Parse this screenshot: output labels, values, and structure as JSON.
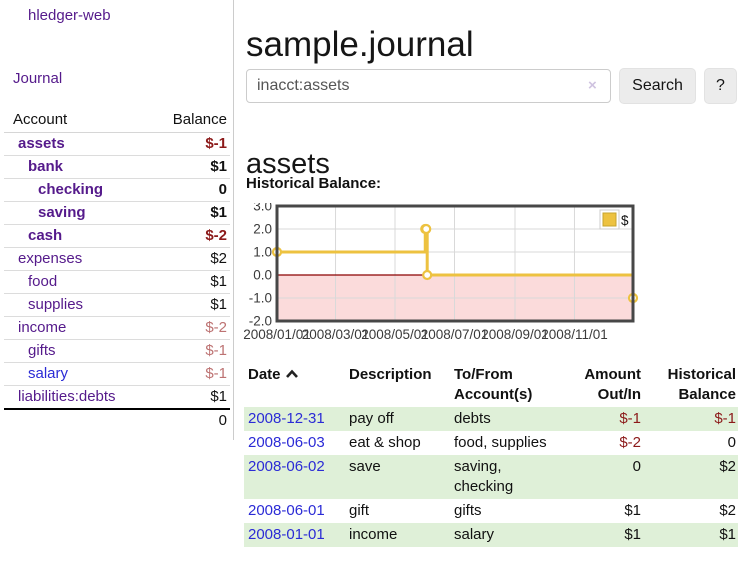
{
  "app": {
    "brand": "hledger-web",
    "nav_journal": "Journal"
  },
  "sidebar": {
    "header": {
      "account": "Account",
      "balance": "Balance"
    },
    "accounts": [
      {
        "name": "assets",
        "balance": "$-1",
        "level": 0,
        "bold": true
      },
      {
        "name": "bank",
        "balance": "$1",
        "level": 1,
        "bold": true
      },
      {
        "name": "checking",
        "balance": "0",
        "level": 2,
        "bold": true
      },
      {
        "name": "saving",
        "balance": "$1",
        "level": 2,
        "bold": true
      },
      {
        "name": "cash",
        "balance": "$-2",
        "level": 1,
        "bold": true
      },
      {
        "name": "expenses",
        "balance": "$2",
        "level": 0,
        "bold": false
      },
      {
        "name": "food",
        "balance": "$1",
        "level": 1,
        "bold": false
      },
      {
        "name": "supplies",
        "balance": "$1",
        "level": 1,
        "bold": false
      },
      {
        "name": "income",
        "balance": "$-2",
        "level": 0,
        "bold": false
      },
      {
        "name": "gifts",
        "balance": "$-1",
        "level": 1,
        "bold": false
      },
      {
        "name": "salary",
        "balance": "$-1",
        "level": 1,
        "bold": false,
        "variant": "blue"
      },
      {
        "name": "liabilities:debts",
        "balance": "$1",
        "level": 0,
        "bold": false
      }
    ],
    "total": "0"
  },
  "main": {
    "title": "sample.journal",
    "search": {
      "value": "inacct:assets",
      "clear_label": "×",
      "button_label": "Search",
      "help_label": "?"
    },
    "account_heading": "assets",
    "chart_label": "Historical Balance:"
  },
  "chart_data": {
    "type": "line",
    "title": "Historical Balance",
    "step": true,
    "series": [
      {
        "name": "$",
        "color": "#edc240",
        "points": [
          [
            "2008-01-01",
            1
          ],
          [
            "2008-06-01",
            2
          ],
          [
            "2008-06-02",
            2
          ],
          [
            "2008-06-03",
            0
          ],
          [
            "2008-12-31",
            -1
          ]
        ]
      }
    ],
    "x_ticks": [
      "2008/01/01",
      "2008/03/01",
      "2008/05/01",
      "2008/07/01",
      "2008/09/01",
      "2008/11/01"
    ],
    "y_ticks": [
      3,
      2,
      1,
      0,
      -1,
      -2
    ],
    "y_tick_labels": [
      "3.0",
      "2.0",
      "1.0",
      "0.0",
      "-1.0",
      "-2.0"
    ],
    "xlim": [
      "2008-01-01",
      "2008-12-31"
    ],
    "ylim": [
      -2,
      3
    ],
    "grid": true,
    "legend": {
      "label": "$",
      "position": "top-right"
    },
    "negative_region_fill": "#fbdbdb",
    "zero_line_color": "#8b0000"
  },
  "transactions": {
    "headers": {
      "date": "Date",
      "description": "Description",
      "accounts": "To/From Account(s)",
      "amount": "Amount Out/In",
      "balance": "Historical Balance"
    },
    "sort": "ascending",
    "rows": [
      {
        "date": "2008-12-31",
        "description": "pay off",
        "accounts": "debts",
        "amount": "$-1",
        "balance": "$-1"
      },
      {
        "date": "2008-06-03",
        "description": "eat & shop",
        "accounts": "food, supplies",
        "amount": "$-2",
        "balance": "0"
      },
      {
        "date": "2008-06-02",
        "description": "save",
        "accounts": "saving, checking",
        "amount": "0",
        "balance": "$2"
      },
      {
        "date": "2008-06-01",
        "description": "gift",
        "accounts": "gifts",
        "amount": "$1",
        "balance": "$2"
      },
      {
        "date": "2008-01-01",
        "description": "income",
        "accounts": "salary",
        "amount": "$1",
        "balance": "$1"
      }
    ]
  },
  "colors": {
    "link_purple": "#551a8b",
    "link_blue": "#2b2bd6",
    "negative": "#8c1a1a",
    "negative_dim": "#bd7272",
    "row_stripe_green": "#dff0d8",
    "series_gold": "#edc240",
    "chart_frame": "#474747",
    "negative_region": "#fbdbdb",
    "zero_line": "#8b0000"
  }
}
